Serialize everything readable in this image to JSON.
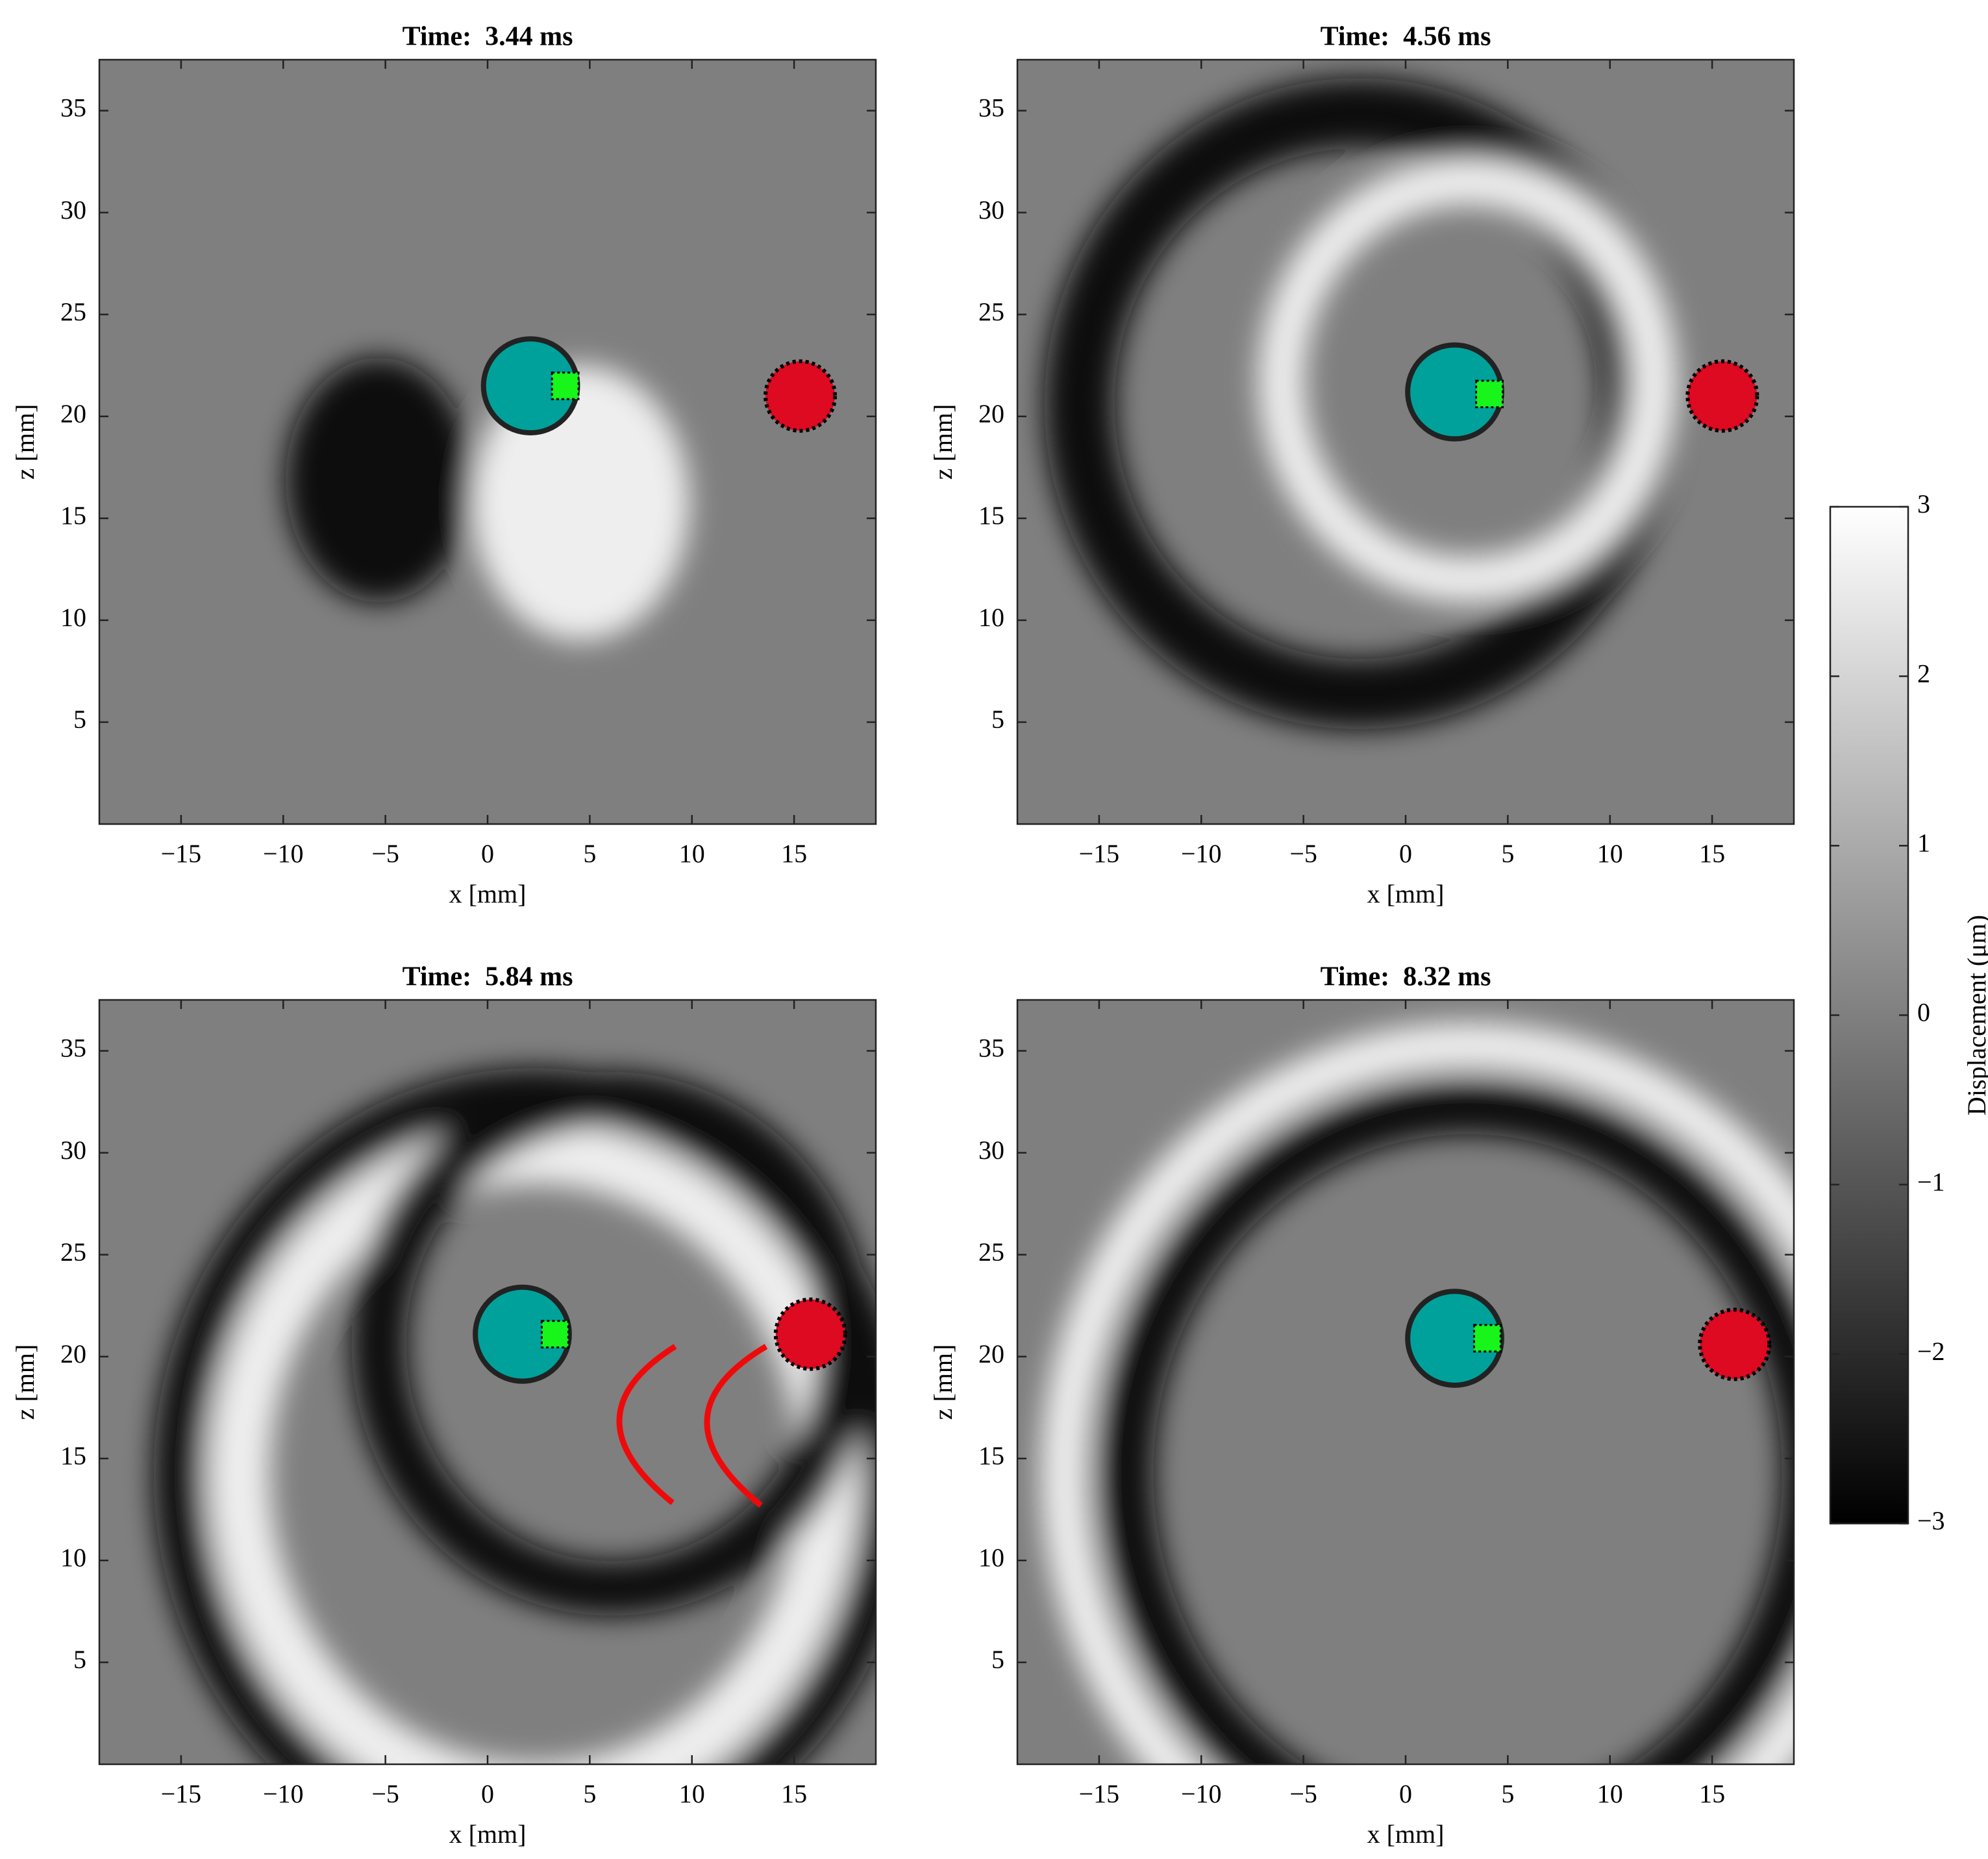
{
  "chart_data": [
    {
      "type": "image",
      "title": "Time:  3.44 ms",
      "xlabel": "x [mm]",
      "ylabel": "z [mm]",
      "xlim": [
        -19,
        19
      ],
      "ylim": [
        37.5,
        0
      ],
      "xticks": [
        {
          "value": -15,
          "label": "−15"
        },
        {
          "value": -10,
          "label": "−10"
        },
        {
          "value": -5,
          "label": "−5"
        },
        0,
        5,
        10,
        15
      ],
      "yticks": [
        5,
        10,
        15,
        20,
        25,
        30,
        35
      ],
      "markers": [
        {
          "shape": "circle",
          "x": 2.1,
          "y": 21.5,
          "r": 2.3,
          "color": "#00a19b"
        },
        {
          "shape": "circle",
          "x": 15.3,
          "y": 21,
          "r": 1.7,
          "color": "#dd0a22"
        },
        {
          "shape": "square",
          "x": 3.8,
          "y": 21.5,
          "r": 0.65,
          "color": "#17f51a"
        }
      ]
    },
    {
      "type": "image",
      "title": "Time:  4.56 ms",
      "xlabel": "x [mm]",
      "ylabel": "z [mm]",
      "xlim": [
        -19,
        19
      ],
      "ylim": [
        37.5,
        0
      ],
      "xticks": [
        {
          "value": -15,
          "label": "−15"
        },
        {
          "value": -10,
          "label": "−10"
        },
        {
          "value": -5,
          "label": "−5"
        },
        0,
        5,
        10,
        15
      ],
      "yticks": [
        5,
        10,
        15,
        20,
        25,
        30,
        35
      ],
      "markers": [
        {
          "shape": "circle",
          "x": 2.4,
          "y": 21.2,
          "r": 2.3,
          "color": "#00a19b"
        },
        {
          "shape": "circle",
          "x": 15.5,
          "y": 21,
          "r": 1.7,
          "color": "#dd0a22"
        },
        {
          "shape": "square",
          "x": 4.1,
          "y": 21.1,
          "r": 0.65,
          "color": "#17f51a"
        }
      ]
    },
    {
      "type": "image",
      "title": "Time:  5.84 ms",
      "xlabel": "x [mm]",
      "ylabel": "z [mm]",
      "xlim": [
        -19,
        19
      ],
      "ylim": [
        37.5,
        0
      ],
      "xticks": [
        {
          "value": -15,
          "label": "−15"
        },
        {
          "value": -10,
          "label": "−10"
        },
        {
          "value": -5,
          "label": "−5"
        },
        0,
        5,
        10,
        15
      ],
      "yticks": [
        5,
        10,
        15,
        20,
        25,
        30,
        35
      ],
      "markers": [
        {
          "shape": "circle",
          "x": 1.7,
          "y": 21.1,
          "r": 2.3,
          "color": "#00a19b"
        },
        {
          "shape": "circle",
          "x": 15.8,
          "y": 21.1,
          "r": 1.7,
          "color": "#dd0a22"
        },
        {
          "shape": "square",
          "x": 3.3,
          "y": 21.1,
          "r": 0.65,
          "color": "#17f51a"
        }
      ]
    },
    {
      "type": "image",
      "title": "Time:  8.32 ms",
      "xlabel": "x [mm]",
      "ylabel": "z [mm]",
      "xlim": [
        -19,
        19
      ],
      "ylim": [
        37.5,
        0
      ],
      "xticks": [
        {
          "value": -15,
          "label": "−15"
        },
        {
          "value": -10,
          "label": "−10"
        },
        {
          "value": -5,
          "label": "−5"
        },
        0,
        5,
        10,
        15
      ],
      "yticks": [
        5,
        10,
        15,
        20,
        25,
        30,
        35
      ],
      "markers": [
        {
          "shape": "circle",
          "x": 2.4,
          "y": 20.9,
          "r": 2.3,
          "color": "#00a19b"
        },
        {
          "shape": "circle",
          "x": 16.1,
          "y": 20.6,
          "r": 1.7,
          "color": "#dd0a22"
        },
        {
          "shape": "square",
          "x": 4.0,
          "y": 20.9,
          "r": 0.65,
          "color": "#17f51a"
        }
      ]
    }
  ],
  "colorbar": {
    "label": "Displacement (μm)",
    "lim": [
      -3,
      3
    ],
    "ticks": [
      {
        "value": -3,
        "label": "−3"
      },
      {
        "value": -2,
        "label": "−2"
      },
      {
        "value": -1,
        "label": "−1"
      },
      0,
      1,
      2,
      3
    ]
  }
}
